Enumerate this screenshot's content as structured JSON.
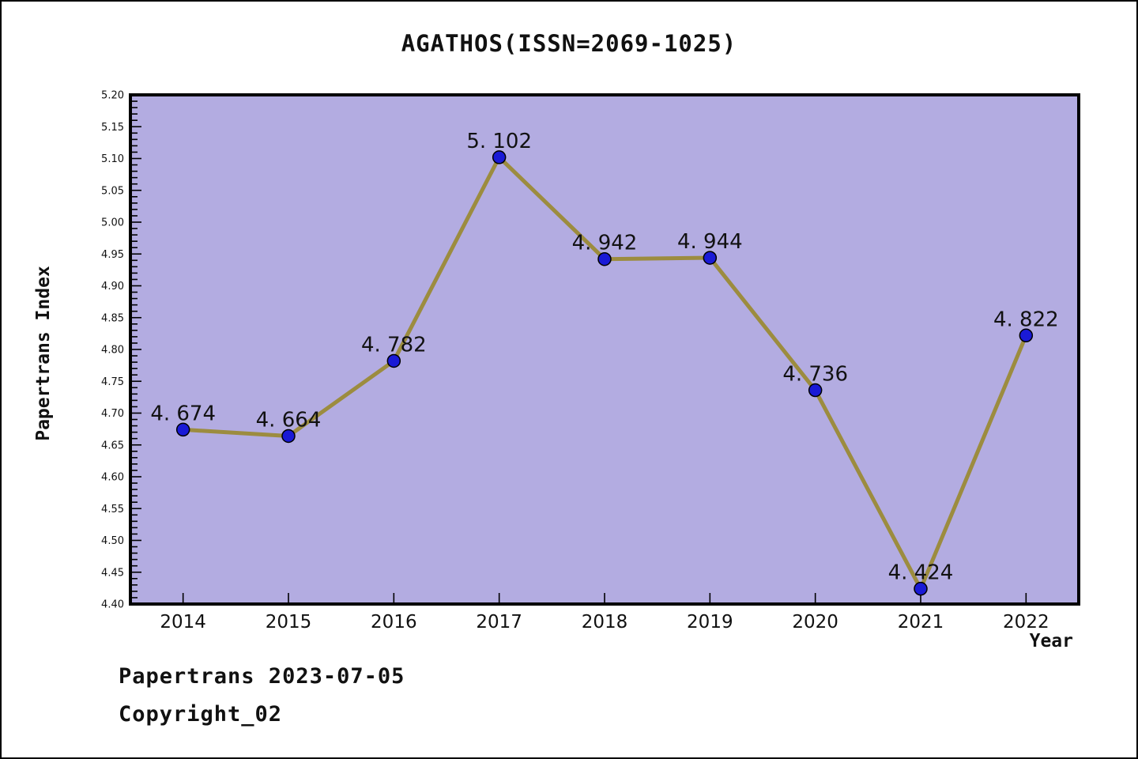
{
  "title": "AGATHOS(ISSN=2069-1025)",
  "y_axis_label": "Papertrans Index",
  "x_axis_label": "Year",
  "footer": {
    "line1": "Papertrans 2023-07-05",
    "line2": "Copyright_02"
  },
  "chart_data": {
    "type": "line",
    "title": "AGATHOS(ISSN=2069-1025)",
    "xlabel": "Year",
    "ylabel": "Papertrans Index",
    "x": [
      2014,
      2015,
      2016,
      2017,
      2018,
      2019,
      2020,
      2021,
      2022
    ],
    "values": [
      4.674,
      4.664,
      4.782,
      5.102,
      4.942,
      4.944,
      4.736,
      4.424,
      4.822
    ],
    "point_labels": [
      "4. 674",
      "4. 664",
      "4. 782",
      "5. 102",
      "4. 942",
      "4. 944",
      "4. 736",
      "4. 424",
      "4. 822"
    ],
    "x_tick_labels": [
      "2014",
      "2015",
      "2016",
      "2017",
      "2018",
      "2019",
      "2020",
      "2021",
      "2022"
    ],
    "y_tick_labels": [
      "4.40",
      "4.45",
      "4.50",
      "4.55",
      "4.60",
      "4.65",
      "4.70",
      "4.75",
      "4.80",
      "4.85",
      "4.90",
      "4.95",
      "5.00",
      "5.05",
      "5.10",
      "5.15",
      "5.20"
    ],
    "xlim": [
      2013.5,
      2022.5
    ],
    "ylim": [
      4.4,
      5.2
    ],
    "y_major_step": 0.05,
    "y_minor_step": 0.01,
    "grid": false,
    "legend": null,
    "colors": {
      "plot_bg": "#b3ace1",
      "line": "#9c8c3f",
      "marker_fill": "#1a1ad6",
      "marker_edge": "#000000",
      "axis": "#000000",
      "text": "#111111"
    }
  }
}
